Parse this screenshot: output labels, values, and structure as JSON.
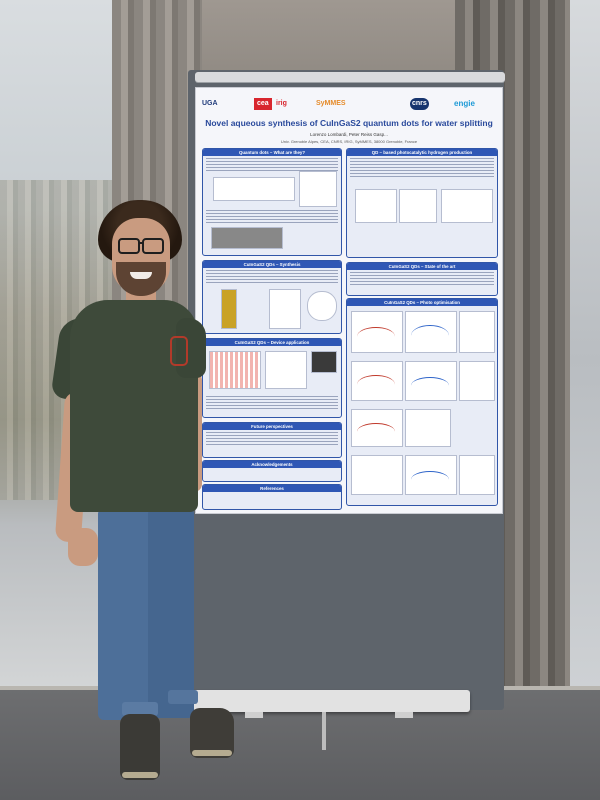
{
  "poster": {
    "logos": {
      "uga": "UGA",
      "cea": "cea",
      "irig": "irig",
      "symmes": "SyMMES",
      "cnrs": "cnrs",
      "engie": "engie"
    },
    "title": "Novel aqueous synthesis of CuInGaS2 quantum dots for water splitting",
    "authors": "Lorenzo Lombardi, Peter Reiss Gasp...",
    "affiliation": "Univ. Grenoble Alpes, CEA, CNRS, IRIG, SyMMES, 38000 Grenoble, France",
    "sections": {
      "qd_what": "Quantum dots – What are they?",
      "qd_h2": "QD – based photocatalytic hydrogen production",
      "synthesis": "CuInGaS2 QDs – Synthesis",
      "state_art": "CuInGaS2 QDs – State of the art",
      "optimisation": "CuInGaS2 QDs – Photo optimisation",
      "device": "CuInGaS2 QDs – Device application",
      "future": "Future perspectives",
      "acknowledgements": "Acknowledgements",
      "references": "References"
    },
    "colors": {
      "accent": "#2f57b5",
      "title": "#2a4a9c"
    }
  }
}
